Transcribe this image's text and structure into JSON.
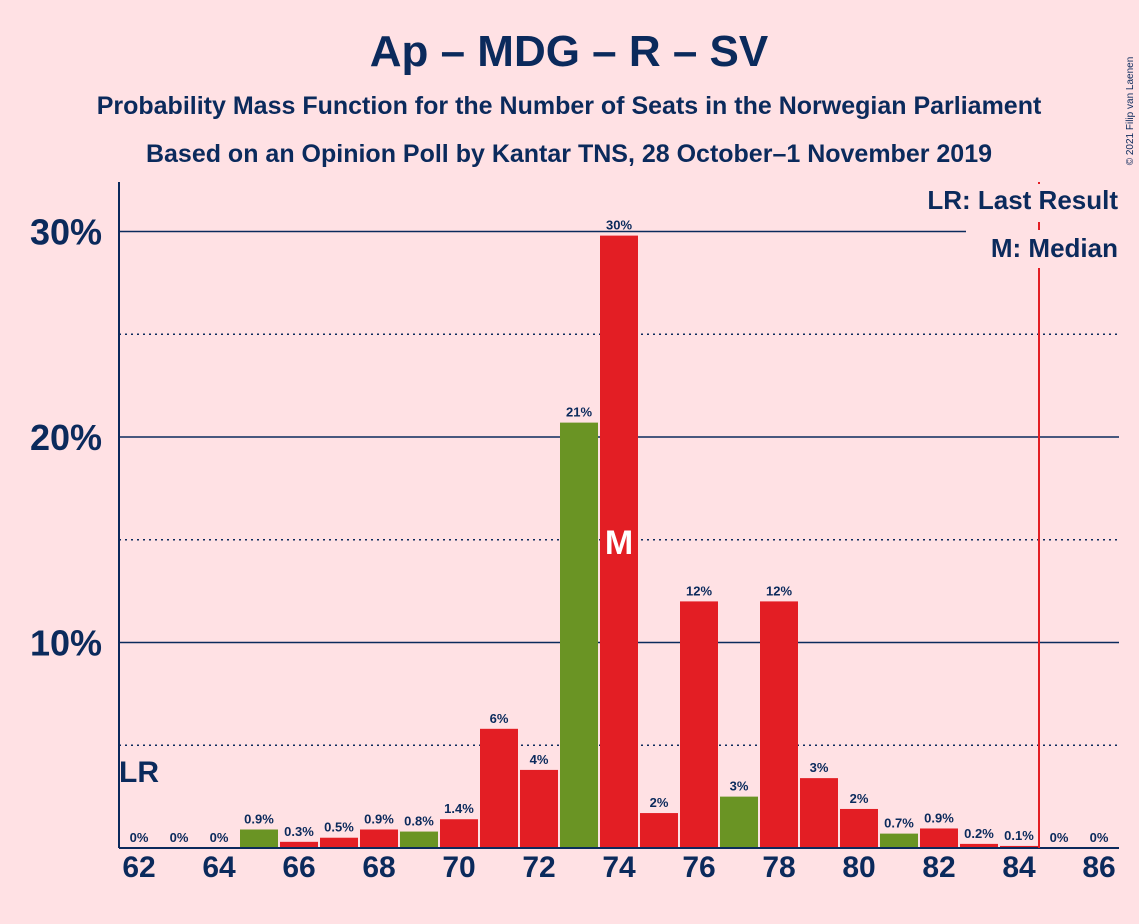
{
  "header": {
    "title": "Ap – MDG – R – SV",
    "subtitle1": "Probability Mass Function for the Number of Seats in the Norwegian Parliament",
    "subtitle2": "Based on an Opinion Poll by Kantar TNS, 28 October–1 November 2019",
    "copyright": "© 2021 Filip van Laenen"
  },
  "legend": {
    "last_result": "LR: Last Result",
    "median": "M: Median"
  },
  "colors": {
    "background": "#ffe1e4",
    "text": "#0b2a5c",
    "bar_red": "#e31e24",
    "bar_green": "#6a9424",
    "marker_line": "#e31e24"
  },
  "chart_data": {
    "type": "bar",
    "x": [
      62,
      63,
      64,
      65,
      66,
      67,
      68,
      69,
      70,
      71,
      72,
      73,
      74,
      75,
      76,
      77,
      78,
      79,
      80,
      81,
      82,
      83,
      84,
      85,
      86
    ],
    "values": [
      0,
      0,
      0,
      0.9,
      0.3,
      0.5,
      0.9,
      0.8,
      1.4,
      5.8,
      3.8,
      20.7,
      29.8,
      1.7,
      12.0,
      2.5,
      12.0,
      3.4,
      1.9,
      0.7,
      0.95,
      0.2,
      0.1,
      0,
      0
    ],
    "labels": [
      "0%",
      "0%",
      "0%",
      "0.9%",
      "0.3%",
      "0.5%",
      "0.9%",
      "0.8%",
      "1.4%",
      "6%",
      "4%",
      "21%",
      "30%",
      "2%",
      "12%",
      "3%",
      "12%",
      "3%",
      "2%",
      "0.7%",
      "0.9%",
      "0.2%",
      "0.1%",
      "0%",
      "0%"
    ],
    "colors": [
      "red",
      "red",
      "red",
      "green",
      "red",
      "red",
      "red",
      "green",
      "red",
      "red",
      "red",
      "green",
      "red",
      "red",
      "red",
      "green",
      "red",
      "red",
      "red",
      "green",
      "red",
      "red",
      "red",
      "red",
      "red"
    ],
    "xticks": [
      62,
      64,
      66,
      68,
      70,
      72,
      74,
      76,
      78,
      80,
      82,
      84,
      86
    ],
    "yticks": [
      10,
      20,
      30
    ],
    "ytick_labels": [
      "10%",
      "20%",
      "30%"
    ],
    "ylim": [
      0,
      32
    ],
    "minor_gridlines": [
      5,
      15,
      25
    ],
    "last_result_seat": 62,
    "last_result_label": "LR",
    "median_seat": 74,
    "median_label": "M",
    "majority_line_seat": 85
  }
}
